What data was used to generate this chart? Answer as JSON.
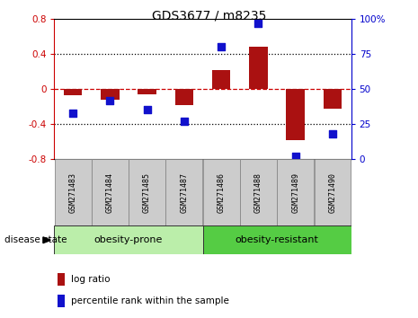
{
  "title": "GDS3677 / m8235",
  "samples": [
    "GSM271483",
    "GSM271484",
    "GSM271485",
    "GSM271487",
    "GSM271486",
    "GSM271488",
    "GSM271489",
    "GSM271490"
  ],
  "log_ratios": [
    -0.07,
    -0.12,
    -0.06,
    -0.18,
    0.22,
    0.48,
    -0.58,
    -0.22
  ],
  "percentile_ranks": [
    33,
    42,
    35,
    27,
    80,
    97,
    2,
    18
  ],
  "bar_color": "#aa1111",
  "dot_color": "#1111cc",
  "ylim_left": [
    -0.8,
    0.8
  ],
  "ylim_right": [
    0,
    100
  ],
  "yticks_left": [
    -0.8,
    -0.4,
    0,
    0.4,
    0.8
  ],
  "yticks_right": [
    0,
    25,
    50,
    75,
    100
  ],
  "zero_line_color": "#cc0000",
  "group1_label": "obesity-prone",
  "group2_label": "obesity-resistant",
  "group1_color": "#bbeeaa",
  "group2_color": "#55cc44",
  "disease_state_label": "disease state",
  "legend_log_ratio": "log ratio",
  "legend_percentile": "percentile rank within the sample",
  "bg_color": "#ffffff",
  "plot_bg_color": "#ffffff",
  "left_axis_color": "#cc0000",
  "right_axis_color": "#0000cc",
  "sample_box_color": "#cccccc",
  "sample_box_edge": "#888888",
  "title_fontsize": 10,
  "tick_fontsize": 7.5,
  "sample_fontsize": 6,
  "group_fontsize": 8,
  "legend_fontsize": 7.5,
  "bar_width": 0.5,
  "dot_size": 35
}
